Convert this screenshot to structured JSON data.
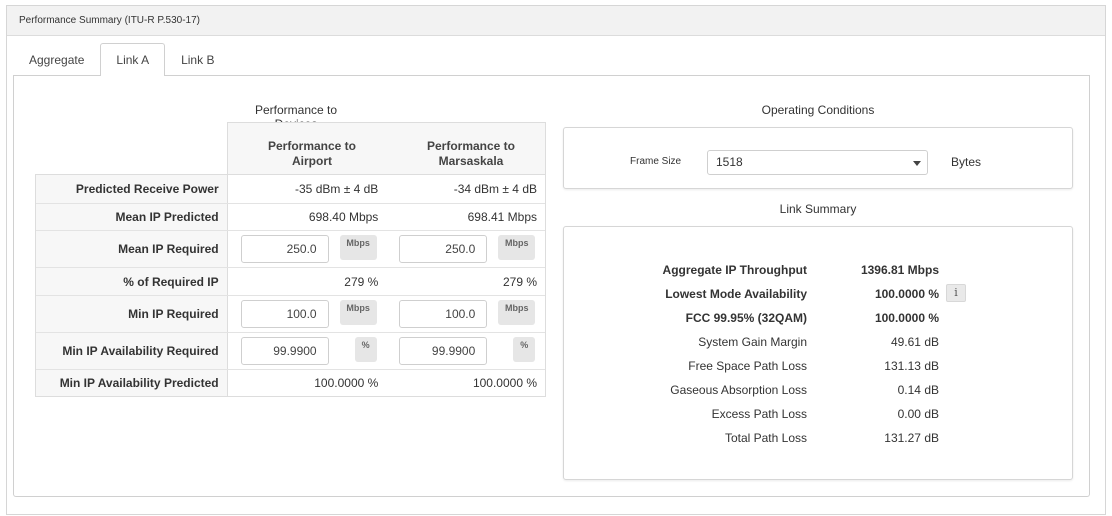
{
  "panel": {
    "title": "Performance Summary (ITU-R P.530-17)"
  },
  "tabs": [
    {
      "label": "Aggregate"
    },
    {
      "label": "Link A",
      "active": true
    },
    {
      "label": "Link B"
    }
  ],
  "performance": {
    "title": "Performance to Devices",
    "columns": [
      {
        "line1": "Performance to",
        "line2": "Airport"
      },
      {
        "line1": "Performance to",
        "line2": "Marsaskala"
      }
    ],
    "rows": [
      {
        "label": "Predicted Receive Power",
        "values": [
          "-35 dBm ± 4 dB",
          "-34 dBm ± 4 dB"
        ]
      },
      {
        "label": "Mean IP Predicted",
        "values": [
          "698.40 Mbps",
          "698.41 Mbps"
        ]
      },
      {
        "label": "Mean IP Required",
        "inputs": [
          "250.0",
          "250.0"
        ],
        "unit": "Mbps"
      },
      {
        "label": "% of Required IP",
        "values": [
          "279 %",
          "279 %"
        ]
      },
      {
        "label": "Min IP Required",
        "inputs": [
          "100.0",
          "100.0"
        ],
        "unit": "Mbps"
      },
      {
        "label": "Min IP Availability Required",
        "inputs": [
          "99.9900",
          "99.9900"
        ],
        "unit": "%"
      },
      {
        "label": "Min IP Availability Predicted",
        "values": [
          "100.0000 %",
          "100.0000 %"
        ]
      }
    ]
  },
  "operating": {
    "title": "Operating Conditions",
    "frame_size_label": "Frame Size",
    "frame_size_value": "1518",
    "frame_size_unit": "Bytes"
  },
  "link_summary": {
    "title": "Link Summary",
    "rows": [
      {
        "label": "Aggregate IP Throughput",
        "value": "1396.81 Mbps",
        "bold": true
      },
      {
        "label": "Lowest Mode Availability",
        "value": "100.0000 %",
        "bold": true,
        "info_icon": "info-icon"
      },
      {
        "label": "FCC 99.95% (32QAM)",
        "value": "100.0000 %",
        "bold": true
      },
      {
        "label": "System Gain Margin",
        "value": "49.61 dB"
      },
      {
        "label": "Free Space Path Loss",
        "value": "131.13 dB"
      },
      {
        "label": "Gaseous Absorption Loss",
        "value": "0.14 dB"
      },
      {
        "label": "Excess Path Loss",
        "value": "0.00 dB"
      },
      {
        "label": "Total Path Loss",
        "value": "131.27 dB"
      }
    ]
  }
}
